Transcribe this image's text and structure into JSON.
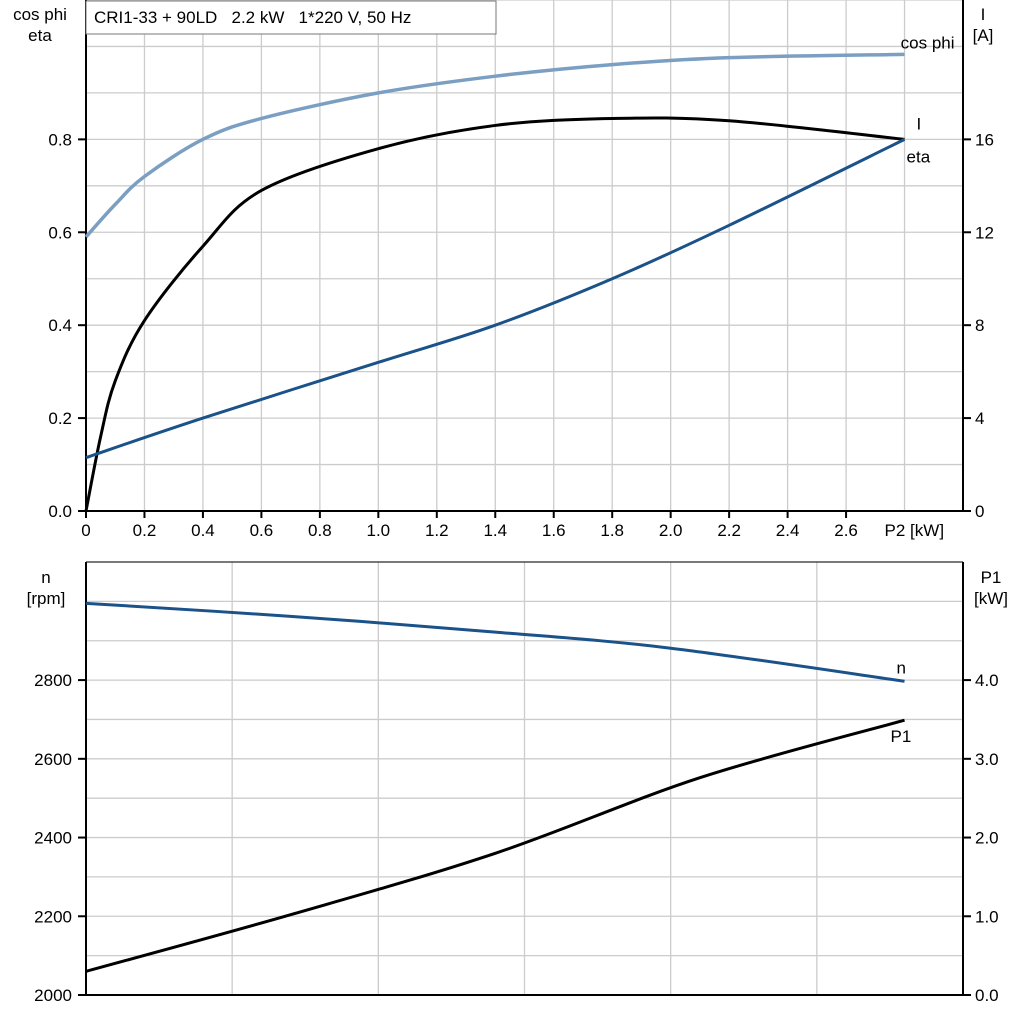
{
  "chart_data": [
    {
      "type": "line",
      "title": "CRI1-33 + 90LD   2.2 kW   1*220 V, 50 Hz",
      "xlabel": "P2 [kW]",
      "ylabel_left": [
        "cos phi",
        "eta"
      ],
      "ylabel_right": [
        "I",
        "[A]"
      ],
      "xlim": [
        0,
        3.0
      ],
      "ylim_left": [
        0,
        1.1
      ],
      "ylim_right": [
        0,
        22
      ],
      "x_ticks": [
        "0",
        "0.2",
        "0.4",
        "0.6",
        "0.8",
        "1.0",
        "1.2",
        "1.4",
        "1.6",
        "1.8",
        "2.0",
        "2.2",
        "2.4",
        "2.6"
      ],
      "y_ticks_left": [
        "0.0",
        "0.2",
        "0.4",
        "0.6",
        "0.8"
      ],
      "y_ticks_right": [
        "0",
        "4",
        "8",
        "12",
        "16"
      ],
      "grid": true,
      "series": [
        {
          "name": "cos phi",
          "axis": "left",
          "color": "#7b9fc2",
          "x": [
            0,
            0.1,
            0.2,
            0.4,
            0.6,
            1.0,
            1.4,
            1.8,
            2.2,
            2.8
          ],
          "y": [
            0.59,
            0.66,
            0.72,
            0.8,
            0.845,
            0.9,
            0.936,
            0.961,
            0.976,
            0.983
          ]
        },
        {
          "name": "eta",
          "axis": "left",
          "color": "#000000",
          "x": [
            0,
            0.05,
            0.1,
            0.2,
            0.4,
            0.6,
            1.0,
            1.4,
            1.8,
            2.2,
            2.8
          ],
          "y": [
            0,
            0.16,
            0.28,
            0.41,
            0.57,
            0.69,
            0.78,
            0.83,
            0.845,
            0.84,
            0.8
          ]
        },
        {
          "name": "I",
          "axis": "right",
          "color": "#1a5289",
          "x": [
            0,
            0.4,
            1.0,
            1.4,
            1.8,
            2.2,
            2.8
          ],
          "y": [
            2.3,
            4.0,
            6.4,
            8.0,
            10.0,
            12.3,
            16.0
          ]
        }
      ]
    },
    {
      "type": "line",
      "xlim": [
        0,
        3.0
      ],
      "ylabel_left": [
        "n",
        "[rpm]"
      ],
      "ylabel_right": [
        "P1",
        "[kW]"
      ],
      "ylim_left": [
        2000,
        3100
      ],
      "ylim_right": [
        0,
        5.5
      ],
      "y_ticks_left": [
        "2000",
        "2200",
        "2400",
        "2600",
        "2800"
      ],
      "y_ticks_right": [
        "0.0",
        "1.0",
        "2.0",
        "3.0",
        "4.0"
      ],
      "grid": true,
      "series": [
        {
          "name": "n",
          "axis": "left",
          "color": "#1a5289",
          "x": [
            0,
            0.7,
            1.4,
            2.0,
            2.8
          ],
          "y": [
            2995,
            2962,
            2922,
            2881,
            2797
          ]
        },
        {
          "name": "P1",
          "axis": "right",
          "color": "#000000",
          "x": [
            0,
            0.7,
            1.4,
            2.1,
            2.8
          ],
          "y": [
            0.3,
            1.02,
            1.8,
            2.76,
            3.49
          ]
        }
      ]
    }
  ]
}
